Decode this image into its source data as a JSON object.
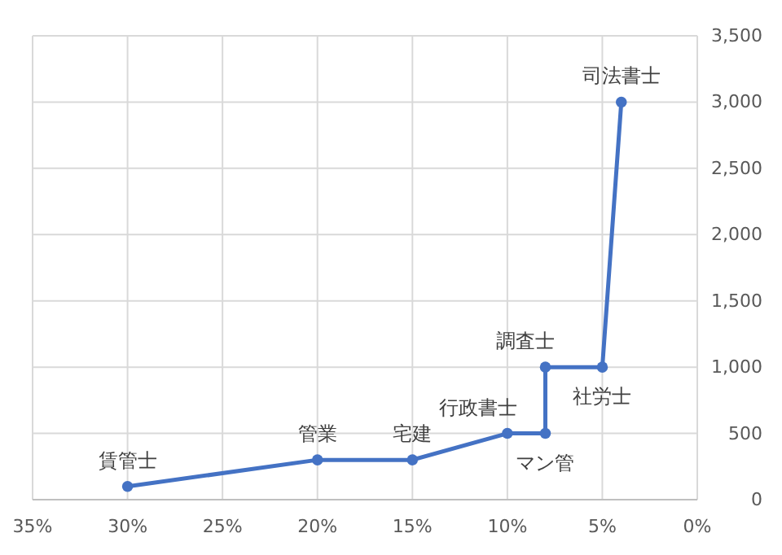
{
  "chart_data": {
    "type": "line",
    "x": [
      30,
      20,
      15,
      10,
      8,
      8,
      5,
      4
    ],
    "series": [
      {
        "color": "#4472c4",
        "values": [
          100,
          300,
          300,
          500,
          500,
          1000,
          1000,
          3000
        ]
      }
    ],
    "xlim": [
      35,
      0
    ],
    "xticks": [
      {
        "value": 35,
        "label": "35%"
      },
      {
        "value": 30,
        "label": "30%"
      },
      {
        "value": 25,
        "label": "25%"
      },
      {
        "value": 20,
        "label": "20%"
      },
      {
        "value": 15,
        "label": "15%"
      },
      {
        "value": 10,
        "label": "10%"
      },
      {
        "value": 5,
        "label": "5%"
      },
      {
        "value": 0,
        "label": "0%"
      }
    ],
    "ylim": [
      0,
      3500
    ],
    "yticks": [
      0,
      {
        "value": 500,
        "label": "500"
      },
      {
        "value": 1000,
        "label": "1,000"
      },
      {
        "value": 1500,
        "label": "1,500"
      },
      {
        "value": 2000,
        "label": "2,000"
      },
      {
        "value": 2500,
        "label": "2,500"
      },
      {
        "value": 3000,
        "label": "3,000"
      },
      {
        "value": 3500,
        "label": "3,500"
      }
    ],
    "grid": true,
    "marker": "circle",
    "line_style": "solid",
    "annotations": [
      {
        "text": "賃管士",
        "x": 30,
        "y": 100
      },
      {
        "text": "管業",
        "x": 20,
        "y": 300
      },
      {
        "text": "宅建",
        "x": 15,
        "y": 300
      },
      {
        "text": "行政書士",
        "x": 10,
        "y": 500
      },
      {
        "text": "マン管",
        "x": 8,
        "y": 500
      },
      {
        "text": "調査士",
        "x": 8,
        "y": 1000
      },
      {
        "text": "社労士",
        "x": 5,
        "y": 1000
      },
      {
        "text": "司法書士",
        "x": 4,
        "y": 3000
      }
    ]
  }
}
